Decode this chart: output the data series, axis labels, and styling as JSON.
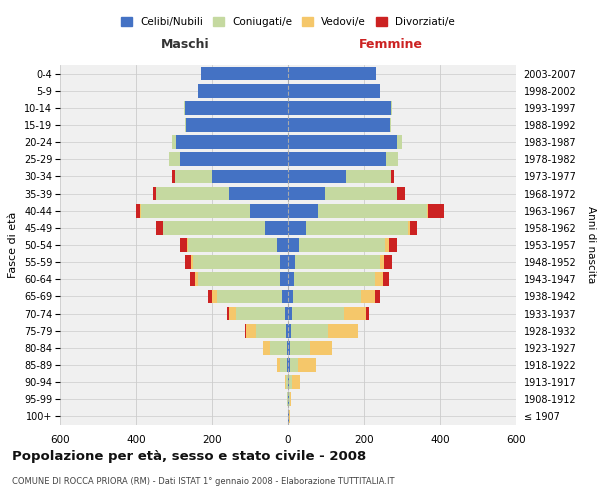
{
  "age_groups": [
    "100+",
    "95-99",
    "90-94",
    "85-89",
    "80-84",
    "75-79",
    "70-74",
    "65-69",
    "60-64",
    "55-59",
    "50-54",
    "45-49",
    "40-44",
    "35-39",
    "30-34",
    "25-29",
    "20-24",
    "15-19",
    "10-14",
    "5-9",
    "0-4"
  ],
  "birth_years": [
    "≤ 1907",
    "1908-1912",
    "1913-1917",
    "1918-1922",
    "1923-1927",
    "1928-1932",
    "1933-1937",
    "1938-1942",
    "1943-1947",
    "1948-1952",
    "1953-1957",
    "1958-1962",
    "1963-1967",
    "1968-1972",
    "1973-1977",
    "1978-1982",
    "1983-1987",
    "1988-1992",
    "1993-1997",
    "1998-2002",
    "2003-2007"
  ],
  "male_celibi": [
    0,
    0,
    1,
    2,
    3,
    5,
    8,
    15,
    20,
    22,
    30,
    60,
    100,
    155,
    200,
    285,
    295,
    268,
    272,
    238,
    230
  ],
  "male_coniugati": [
    0,
    2,
    5,
    20,
    45,
    78,
    128,
    172,
    218,
    228,
    232,
    268,
    288,
    192,
    98,
    28,
    10,
    4,
    1,
    0,
    0
  ],
  "male_vedovi": [
    0,
    0,
    2,
    8,
    18,
    28,
    18,
    12,
    6,
    4,
    4,
    2,
    1,
    0,
    0,
    0,
    0,
    0,
    0,
    0,
    0
  ],
  "male_divorziati": [
    0,
    0,
    0,
    0,
    0,
    2,
    7,
    11,
    14,
    16,
    18,
    18,
    12,
    8,
    6,
    1,
    0,
    0,
    0,
    0,
    0
  ],
  "female_nubili": [
    2,
    2,
    3,
    4,
    5,
    7,
    10,
    14,
    17,
    19,
    28,
    48,
    78,
    98,
    152,
    258,
    288,
    268,
    272,
    242,
    232
  ],
  "female_coniugate": [
    0,
    2,
    8,
    22,
    52,
    98,
    138,
    178,
    212,
    222,
    228,
    268,
    288,
    188,
    118,
    32,
    12,
    4,
    1,
    0,
    0
  ],
  "female_vedove": [
    2,
    5,
    20,
    48,
    58,
    78,
    58,
    38,
    22,
    12,
    10,
    4,
    2,
    1,
    0,
    0,
    0,
    0,
    0,
    0,
    0
  ],
  "female_divorziate": [
    0,
    0,
    0,
    0,
    0,
    2,
    7,
    11,
    16,
    20,
    22,
    20,
    42,
    22,
    10,
    0,
    0,
    0,
    0,
    0,
    0
  ],
  "colors_celibi": "#4472c4",
  "colors_coniugati": "#c5d9a0",
  "colors_vedovi": "#f5c76a",
  "colors_divorziati": "#cc2222",
  "xlim": 600,
  "xticks": [
    -600,
    -400,
    -200,
    0,
    200,
    400,
    600
  ],
  "title": "Popolazione per età, sesso e stato civile - 2008",
  "subtitle": "COMUNE DI ROCCA PRIORA (RM) - Dati ISTAT 1° gennaio 2008 - Elaborazione TUTTITALIA.IT",
  "ylabel": "Fasce di età",
  "ylabel_right": "Anni di nascita",
  "label_maschi": "Maschi",
  "label_femmine": "Femmine",
  "legend_labels": [
    "Celibi/Nubili",
    "Coniugati/e",
    "Vedovi/e",
    "Divorziati/e"
  ],
  "bg_color": "#ffffff",
  "plot_bg_color": "#f0f0f0",
  "grid_color": "#cccccc"
}
